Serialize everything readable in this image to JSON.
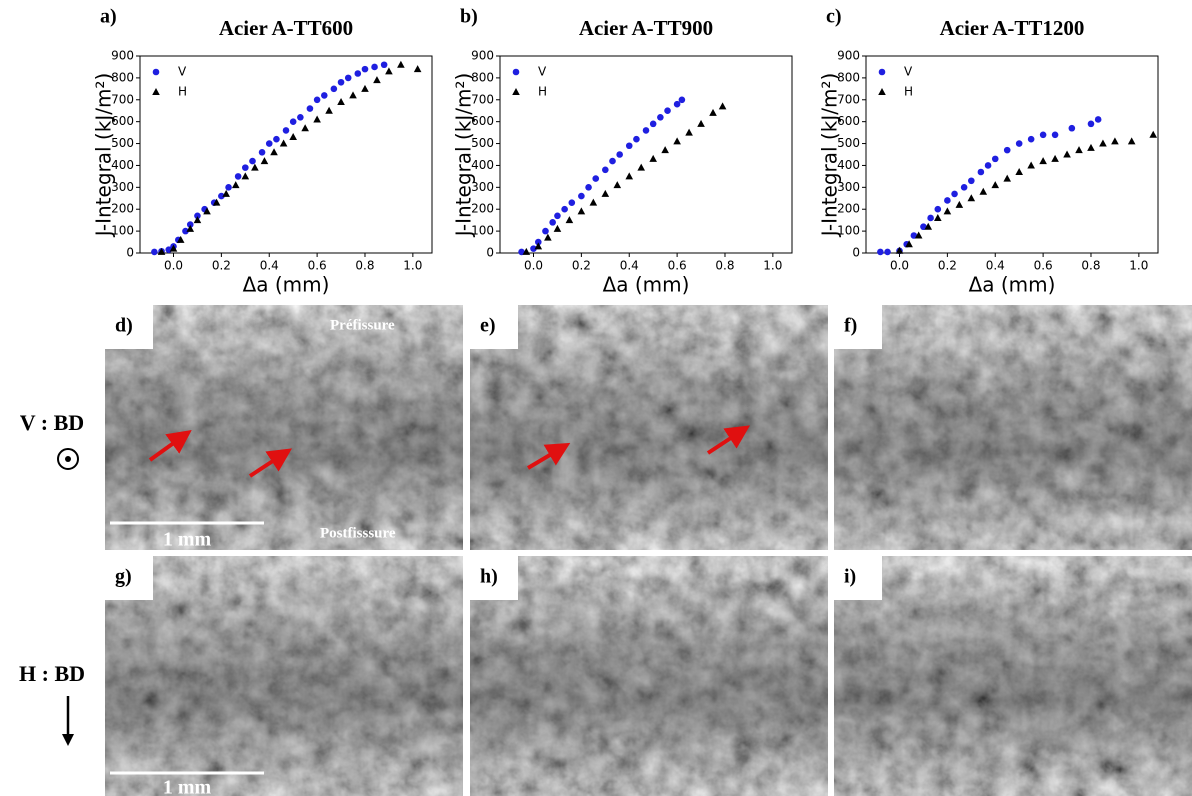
{
  "chart_data": [
    {
      "type": "scatter",
      "panel_label": "a)",
      "title": "Acier A-TT600",
      "xlabel": "Δa (mm)",
      "ylabel": "J-Integral (kJ/m²)",
      "legend": "upper left",
      "xlim": [
        -0.14,
        1.08
      ],
      "ylim": [
        0,
        900
      ],
      "xticks": [
        {
          "value": 0,
          "label": "0.0"
        },
        0.2,
        0.4,
        0.6,
        0.8,
        {
          "value": 1,
          "label": "1.0"
        }
      ],
      "yticks": [
        0,
        100,
        200,
        300,
        400,
        500,
        600,
        700,
        800,
        900
      ],
      "series": [
        {
          "name": "V",
          "color": "#1f1fe0",
          "marker": "circle",
          "x": [
            -0.08,
            -0.05,
            -0.02,
            0.0,
            0.02,
            0.05,
            0.07,
            0.1,
            0.13,
            0.17,
            0.2,
            0.23,
            0.27,
            0.3,
            0.33,
            0.37,
            0.4,
            0.43,
            0.47,
            0.5,
            0.53,
            0.57,
            0.6,
            0.63,
            0.67,
            0.7,
            0.73,
            0.77,
            0.8,
            0.84,
            0.88
          ],
          "values": [
            5,
            8,
            15,
            30,
            60,
            100,
            130,
            170,
            200,
            230,
            260,
            300,
            350,
            390,
            420,
            460,
            500,
            520,
            560,
            600,
            620,
            660,
            700,
            720,
            750,
            780,
            800,
            820,
            840,
            850,
            860
          ]
        },
        {
          "name": "H",
          "color": "#000000",
          "marker": "triangle",
          "x": [
            -0.05,
            0.0,
            0.03,
            0.07,
            0.1,
            0.14,
            0.18,
            0.22,
            0.26,
            0.3,
            0.34,
            0.38,
            0.42,
            0.46,
            0.5,
            0.55,
            0.6,
            0.65,
            0.7,
            0.75,
            0.8,
            0.85,
            0.9,
            0.95,
            1.02
          ],
          "values": [
            5,
            20,
            60,
            110,
            150,
            190,
            230,
            270,
            310,
            350,
            390,
            420,
            460,
            500,
            530,
            570,
            610,
            650,
            690,
            720,
            750,
            790,
            830,
            860,
            840
          ]
        }
      ]
    },
    {
      "type": "scatter",
      "panel_label": "b)",
      "title": "Acier A-TT900",
      "xlabel": "Δa (mm)",
      "ylabel": "J-Integral (kJ/m²)",
      "legend": "upper left",
      "xlim": [
        -0.14,
        1.08
      ],
      "ylim": [
        0,
        900
      ],
      "xticks": [
        {
          "value": 0,
          "label": "0.0"
        },
        0.2,
        0.4,
        0.6,
        0.8,
        {
          "value": 1,
          "label": "1.0"
        }
      ],
      "yticks": [
        0,
        100,
        200,
        300,
        400,
        500,
        600,
        700,
        800,
        900
      ],
      "series": [
        {
          "name": "V",
          "color": "#1f1fe0",
          "marker": "circle",
          "x": [
            -0.05,
            0.0,
            0.02,
            0.05,
            0.08,
            0.1,
            0.13,
            0.16,
            0.2,
            0.23,
            0.26,
            0.3,
            0.33,
            0.36,
            0.4,
            0.43,
            0.47,
            0.5,
            0.53,
            0.56,
            0.6,
            0.62
          ],
          "values": [
            5,
            20,
            50,
            100,
            140,
            170,
            200,
            230,
            260,
            300,
            340,
            380,
            420,
            450,
            490,
            520,
            560,
            590,
            620,
            650,
            680,
            700
          ]
        },
        {
          "name": "H",
          "color": "#000000",
          "marker": "triangle",
          "x": [
            -0.03,
            0.02,
            0.06,
            0.1,
            0.15,
            0.2,
            0.25,
            0.3,
            0.35,
            0.4,
            0.45,
            0.5,
            0.55,
            0.6,
            0.65,
            0.7,
            0.75,
            0.79
          ],
          "values": [
            5,
            30,
            70,
            110,
            150,
            190,
            230,
            270,
            310,
            350,
            390,
            430,
            470,
            510,
            550,
            590,
            640,
            670
          ]
        }
      ]
    },
    {
      "type": "scatter",
      "panel_label": "c)",
      "title": "Acier A-TT1200",
      "xlabel": "Δa (mm)",
      "ylabel": "J-Integral (kJ/m²)",
      "legend": "upper left",
      "xlim": [
        -0.14,
        1.08
      ],
      "ylim": [
        0,
        900
      ],
      "xticks": [
        {
          "value": 0,
          "label": "0.0"
        },
        0.2,
        0.4,
        0.6,
        0.8,
        {
          "value": 1,
          "label": "1.0"
        }
      ],
      "yticks": [
        0,
        100,
        200,
        300,
        400,
        500,
        600,
        700,
        800,
        900
      ],
      "series": [
        {
          "name": "V",
          "color": "#1f1fe0",
          "marker": "circle",
          "x": [
            -0.08,
            -0.05,
            0.0,
            0.03,
            0.06,
            0.1,
            0.13,
            0.16,
            0.2,
            0.23,
            0.27,
            0.3,
            0.34,
            0.37,
            0.4,
            0.45,
            0.5,
            0.55,
            0.6,
            0.65,
            0.72,
            0.8,
            0.83
          ],
          "values": [
            5,
            5,
            10,
            40,
            80,
            120,
            160,
            200,
            240,
            270,
            300,
            330,
            370,
            400,
            430,
            470,
            500,
            520,
            540,
            540,
            570,
            590,
            610
          ]
        },
        {
          "name": "H",
          "color": "#000000",
          "marker": "triangle",
          "x": [
            0.0,
            0.04,
            0.08,
            0.12,
            0.16,
            0.2,
            0.25,
            0.3,
            0.35,
            0.4,
            0.45,
            0.5,
            0.55,
            0.6,
            0.65,
            0.7,
            0.75,
            0.8,
            0.85,
            0.9,
            0.97,
            1.06
          ],
          "values": [
            10,
            40,
            80,
            120,
            160,
            190,
            220,
            250,
            280,
            310,
            340,
            370,
            400,
            420,
            430,
            450,
            470,
            480,
            500,
            510,
            510,
            540
          ]
        }
      ]
    }
  ],
  "images": [
    {
      "label": "d)"
    },
    {
      "label": "e)"
    },
    {
      "label": "f)"
    },
    {
      "label": "g)"
    },
    {
      "label": "h)"
    },
    {
      "label": "i)"
    }
  ],
  "annotations": {
    "prefissure": "Préfissure",
    "postfissure": "Postfisssure",
    "scale_bar_top": "1 mm",
    "scale_bar_bottom": "1 mm"
  },
  "row_labels": [
    "V : BD",
    "H : BD"
  ]
}
